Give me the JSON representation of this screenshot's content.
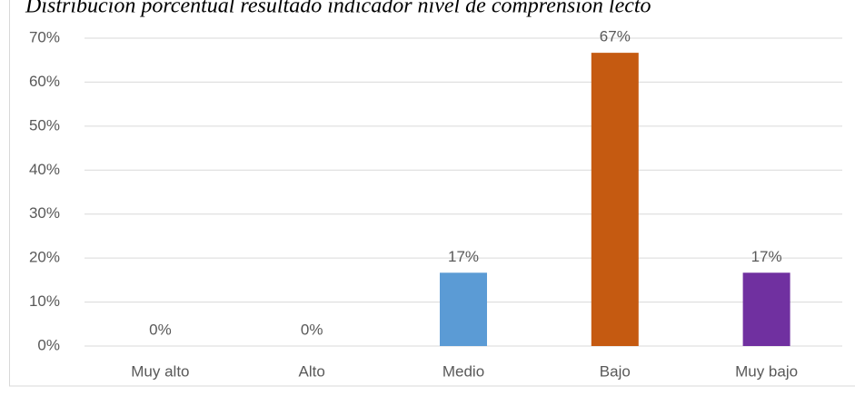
{
  "chart_data": {
    "type": "bar",
    "title": "Distribución porcentual resultado indicador nivel de comprensión lecto",
    "categories": [
      "Muy alto",
      "Alto",
      "Medio",
      "Bajo",
      "Muy bajo"
    ],
    "values": [
      0,
      0,
      16.67,
      66.67,
      16.67
    ],
    "value_labels": [
      "0%",
      "0%",
      "17%",
      "67%",
      "17%"
    ],
    "colors": [
      "#4472c4",
      "#ed7d31",
      "#5b9bd5",
      "#c55a11",
      "#7030a0"
    ],
    "ylim": [
      0,
      70
    ],
    "yticks": [
      {
        "value": 0,
        "label": "0%"
      },
      {
        "value": 10,
        "label": "10%"
      },
      {
        "value": 20,
        "label": "20%"
      },
      {
        "value": 30,
        "label": "30%"
      },
      {
        "value": 40,
        "label": "40%"
      },
      {
        "value": 50,
        "label": "50%"
      },
      {
        "value": 60,
        "label": "60%"
      },
      {
        "value": 70,
        "label": "70%"
      }
    ],
    "grid": true
  }
}
